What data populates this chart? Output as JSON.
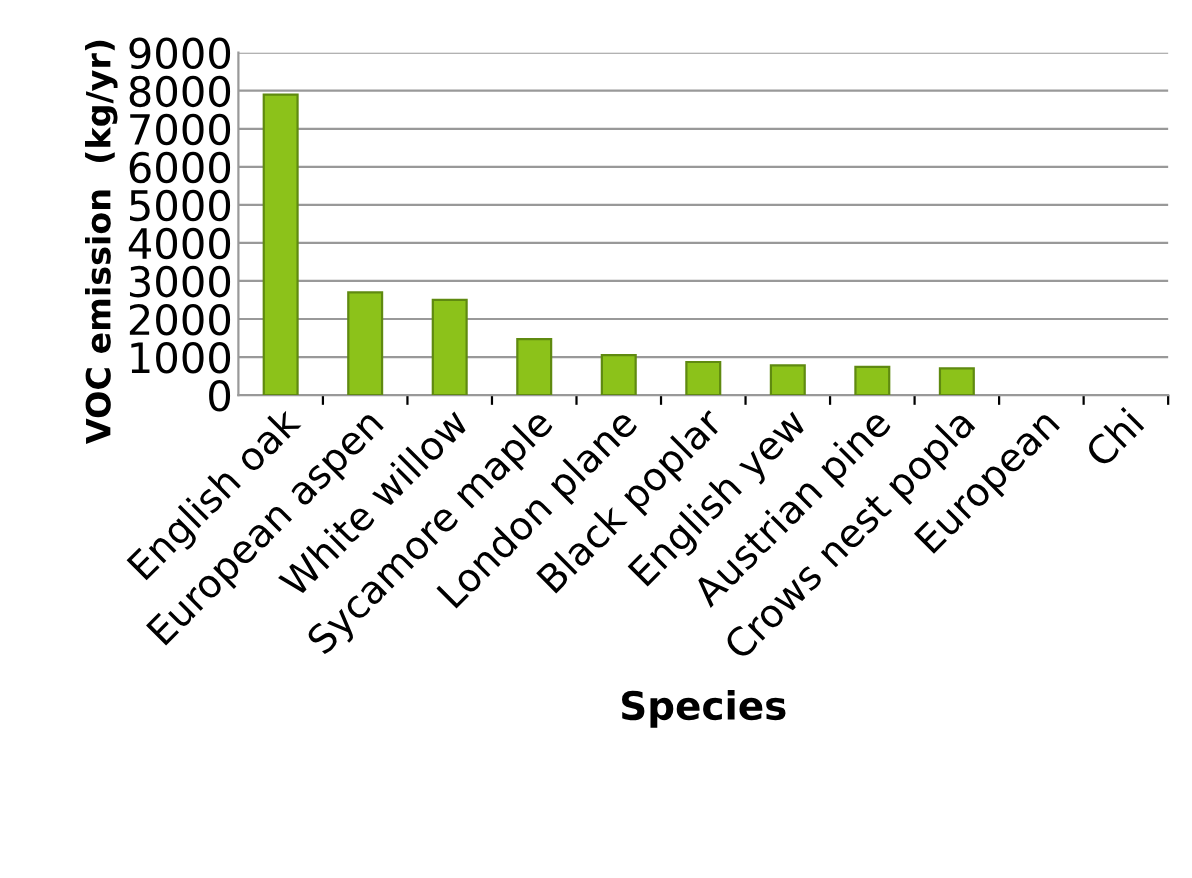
{
  "chart_data": {
    "type": "bar",
    "xlabel": "Species",
    "ylabel": "VOC emission  (kg/yr)",
    "categories": [
      "English oak",
      "European aspen",
      "White willow",
      "Sycamore maple",
      "London plane",
      "Black poplar",
      "English yew",
      "Austrian pine",
      "Crows nest popla",
      "European",
      "Chi"
    ],
    "values": [
      7900,
      2700,
      2500,
      1470,
      1050,
      870,
      780,
      740,
      700,
      null,
      null
    ],
    "color": "#8cc21a",
    "ylim": [
      0,
      9000
    ],
    "yticks": [
      0,
      1000,
      2000,
      3000,
      4000,
      5000,
      6000,
      7000,
      8000,
      9000
    ],
    "grid": "y",
    "legend": false
  }
}
